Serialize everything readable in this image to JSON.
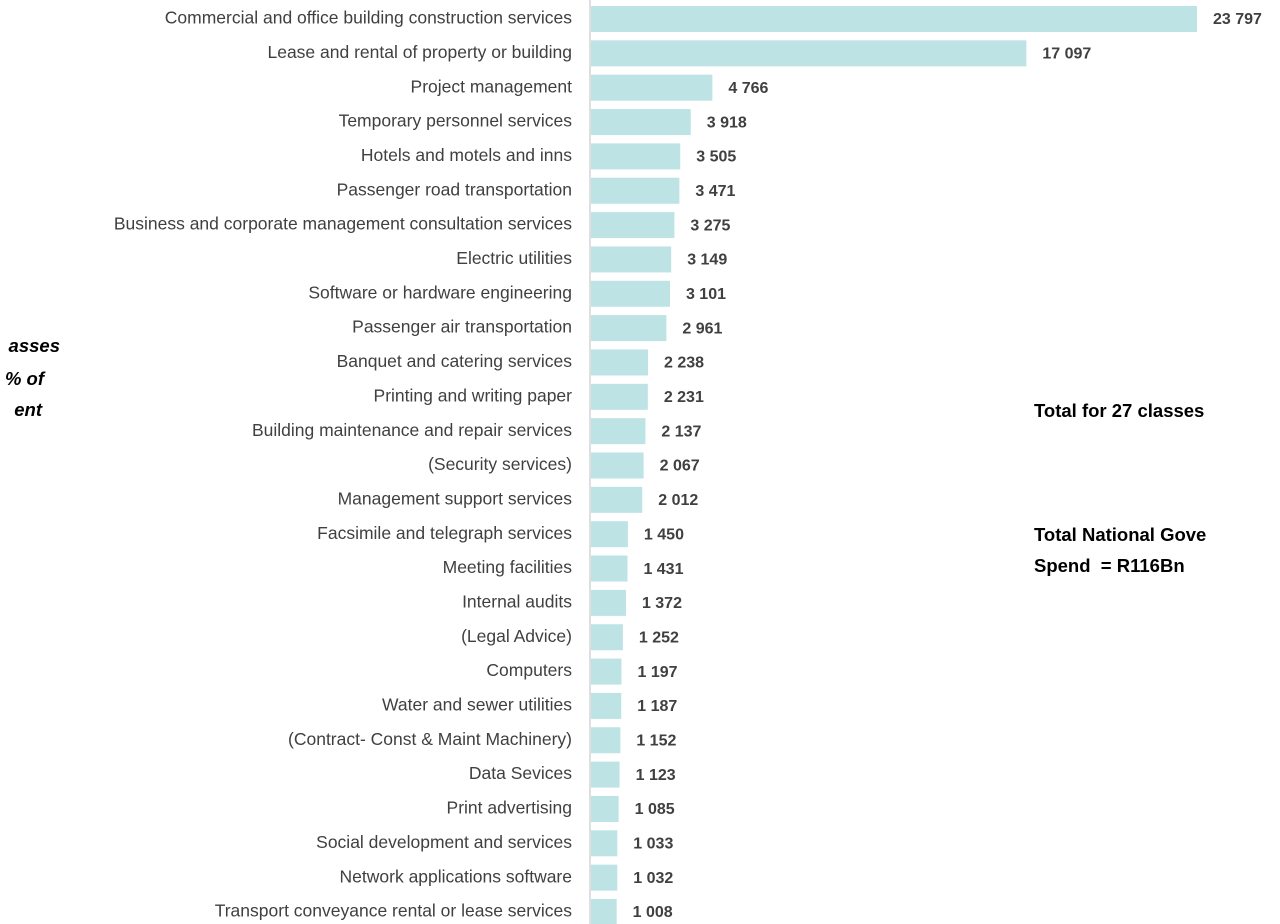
{
  "chart_data": {
    "type": "bar",
    "orientation": "horizontal",
    "color": "#bde3e5",
    "categories": [
      "Commercial and office building construction services",
      "Lease and rental of property or building",
      "Project management",
      "Temporary personnel services",
      "Hotels and motels and inns",
      "Passenger road transportation",
      "Business and corporate management consultation services",
      "Electric utilities",
      "Software or hardware engineering",
      "Passenger air transportation",
      "Banquet and catering services",
      "Printing and writing paper",
      "Building maintenance and repair services",
      "(Security services)",
      "Management support services",
      "Facsimile and telegraph services",
      "Meeting facilities",
      "Internal audits",
      "(Legal Advice)",
      "Computers",
      "Water and sewer utilities",
      "(Contract- Const & Maint Machinery)",
      "Data Sevices",
      "Print advertising",
      "Social development and services",
      "Network applications software",
      "Transport conveyance rental or lease services"
    ],
    "values": [
      23797,
      17097,
      4766,
      3918,
      3505,
      3471,
      3275,
      3149,
      3101,
      2961,
      2238,
      2231,
      2137,
      2067,
      2012,
      1450,
      1431,
      1372,
      1252,
      1197,
      1187,
      1152,
      1123,
      1085,
      1033,
      1032,
      1008
    ],
    "value_labels": [
      "23 797",
      "17 097",
      "4 766",
      "3 918",
      "3 505",
      "3 471",
      "3 275",
      "3 149",
      "3 101",
      "2 961",
      "2 238",
      "2 231",
      "2 137",
      "2 067",
      "2 012",
      "1 450",
      "1 431",
      "1 372",
      "1 252",
      "1 197",
      "1 187",
      "1 152",
      "1 123",
      "1 085",
      "1 033",
      "1 032",
      "1 008"
    ],
    "left_annotation": [
      "asses",
      "% of",
      "ent"
    ],
    "right_annotations": [
      "Total for 27 classes",
      "Total National Gove",
      "Spend  = R116Bn"
    ]
  }
}
